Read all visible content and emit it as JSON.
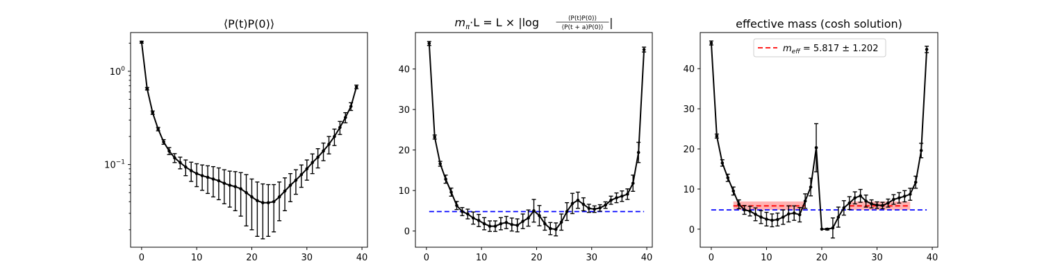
{
  "chart_data": [
    {
      "type": "line",
      "yscale": "log",
      "title": "⟨P(t)P(0)⟩",
      "xlabel": "",
      "ylabel": "",
      "xlim": [
        -2,
        41
      ],
      "ylim": [
        0.013,
        2.6
      ],
      "xticks": [
        0,
        10,
        20,
        30,
        40
      ],
      "yticks": [
        {
          "value": 1,
          "base": "10",
          "exp": "0"
        },
        {
          "value": 0.1,
          "base": "10",
          "exp": "−1"
        }
      ],
      "series": [
        {
          "x": [
            0,
            1,
            2,
            3,
            4,
            5,
            6,
            7,
            8,
            9,
            10,
            11,
            12,
            13,
            14,
            15,
            16,
            17,
            18,
            19,
            20,
            21,
            22,
            23,
            24,
            25,
            26,
            27,
            28,
            29,
            30,
            31,
            32,
            33,
            34,
            35,
            36,
            37,
            38,
            39
          ],
          "y": [
            2.05,
            0.65,
            0.36,
            0.24,
            0.175,
            0.14,
            0.118,
            0.105,
            0.094,
            0.086,
            0.08,
            0.076,
            0.073,
            0.07,
            0.067,
            0.063,
            0.06,
            0.058,
            0.055,
            0.05,
            0.045,
            0.041,
            0.039,
            0.039,
            0.04,
            0.045,
            0.052,
            0.06,
            0.068,
            0.078,
            0.09,
            0.105,
            0.12,
            0.14,
            0.165,
            0.2,
            0.25,
            0.32,
            0.42,
            0.68
          ],
          "err": [
            0.05,
            0.02,
            0.015,
            0.01,
            0.01,
            0.012,
            0.013,
            0.015,
            0.018,
            0.02,
            0.022,
            0.023,
            0.024,
            0.025,
            0.025,
            0.025,
            0.025,
            0.026,
            0.027,
            0.028,
            0.025,
            0.024,
            0.023,
            0.022,
            0.021,
            0.02,
            0.02,
            0.02,
            0.02,
            0.021,
            0.022,
            0.025,
            0.028,
            0.03,
            0.035,
            0.04,
            0.04,
            0.04,
            0.04,
            0.03
          ]
        }
      ]
    },
    {
      "type": "line",
      "title_parts": {
        "lhs": "m",
        "lhs_sub": "π",
        "mid": "·L = L × |log",
        "num": "⟨P(t)P(0)⟩",
        "den": "⟨P(t + a)P(0)⟩",
        "end": "|"
      },
      "xlabel": "",
      "ylabel": "",
      "xlim": [
        -2,
        41
      ],
      "ylim": [
        -4,
        49
      ],
      "xticks": [
        0,
        10,
        20,
        30,
        40
      ],
      "yticks": [
        0,
        10,
        20,
        30,
        40
      ],
      "reference_line": {
        "y": 4.8,
        "x_range": [
          0.5,
          39.5
        ],
        "color": "#0000ff"
      },
      "series": [
        {
          "x": [
            0.5,
            1.5,
            2.5,
            3.5,
            4.5,
            5.5,
            6.5,
            7.5,
            8.5,
            9.5,
            10.5,
            11.5,
            12.5,
            13.5,
            14.5,
            15.5,
            16.5,
            17.5,
            18.5,
            19.5,
            20.5,
            21.5,
            22.5,
            23.5,
            24.5,
            25.5,
            26.5,
            27.5,
            28.5,
            29.5,
            30.5,
            31.5,
            32.5,
            33.5,
            34.5,
            35.5,
            36.5,
            37.5,
            38.5,
            39.5
          ],
          "y": [
            46.3,
            23.2,
            16.6,
            12.8,
            9.6,
            6.3,
            4.8,
            4.2,
            3.2,
            2.6,
            1.8,
            1.2,
            1.2,
            1.8,
            2.1,
            1.6,
            1.4,
            2.4,
            3.2,
            5.0,
            3.8,
            1.8,
            0.6,
            0.4,
            2.2,
            4.8,
            6.8,
            7.6,
            6.6,
            5.6,
            5.4,
            5.7,
            6.4,
            7.6,
            8.2,
            8.6,
            9.1,
            11.8,
            19.4,
            44.8
          ],
          "err": [
            0.5,
            0.5,
            0.6,
            1.0,
            1.0,
            1.0,
            1.0,
            1.2,
            1.5,
            1.5,
            1.5,
            1.3,
            1.3,
            1.5,
            1.5,
            1.6,
            1.6,
            1.8,
            2.0,
            2.8,
            2.5,
            1.6,
            1.5,
            1.6,
            2.0,
            2.2,
            2.5,
            2.0,
            1.6,
            1.0,
            0.8,
            0.8,
            0.8,
            1.0,
            1.2,
            1.3,
            1.3,
            2.0,
            2.5,
            0.6
          ]
        }
      ]
    },
    {
      "type": "line",
      "title": "effective mass (cosh solution)",
      "xlabel": "",
      "ylabel": "",
      "xlim": [
        -2,
        41
      ],
      "ylim": [
        -4.5,
        49
      ],
      "xticks": [
        0,
        10,
        20,
        30,
        40
      ],
      "yticks": [
        0,
        10,
        20,
        30,
        40
      ],
      "legend": {
        "location": "upper center",
        "entries": [
          {
            "sym": "m",
            "sub": "eff",
            "text": " = 5.817 ± 1.202"
          }
        ]
      },
      "reference_line": {
        "y": 4.8,
        "x_range": [
          0,
          39
        ],
        "color": "#0000ff"
      },
      "fit_bands": [
        {
          "x_range": [
            4,
            17
          ],
          "y": 5.8,
          "y_range": [
            4.8,
            6.9
          ],
          "color": "#ff0000"
        },
        {
          "x_range": [
            25,
            36
          ],
          "y": 5.8,
          "y_range": [
            4.8,
            6.9
          ],
          "color": "#ff0000"
        }
      ],
      "series": [
        {
          "x": [
            0,
            1,
            2,
            3,
            4,
            5,
            6,
            7,
            8,
            9,
            10,
            11,
            12,
            13,
            14,
            15,
            16,
            17,
            18,
            19,
            20,
            21,
            22,
            23,
            24,
            25,
            26,
            27,
            28,
            29,
            30,
            31,
            32,
            33,
            34,
            35,
            36,
            37,
            38,
            39
          ],
          "y": [
            46.4,
            23.2,
            16.5,
            12.8,
            9.5,
            6.2,
            4.8,
            4.5,
            3.7,
            3.0,
            2.5,
            2.2,
            2.4,
            3.0,
            3.8,
            4.0,
            3.6,
            7.0,
            10.5,
            20.3,
            0.0,
            0.0,
            0.3,
            3.0,
            5.3,
            6.5,
            7.8,
            8.3,
            7.0,
            6.3,
            6.0,
            5.9,
            6.5,
            7.4,
            7.8,
            8.2,
            8.7,
            11.7,
            19.6,
            44.8
          ],
          "err": [
            0.5,
            0.5,
            0.8,
            0.9,
            1.0,
            1.1,
            1.1,
            1.2,
            1.6,
            1.6,
            1.7,
            1.6,
            1.6,
            1.8,
            2.0,
            1.8,
            1.8,
            1.8,
            2.2,
            6.0,
            0.0,
            0.2,
            2.5,
            2.5,
            1.8,
            1.6,
            1.5,
            1.6,
            1.5,
            1.0,
            0.8,
            0.8,
            1.0,
            1.2,
            1.3,
            1.4,
            1.5,
            1.5,
            1.8,
            0.8
          ]
        }
      ]
    }
  ]
}
